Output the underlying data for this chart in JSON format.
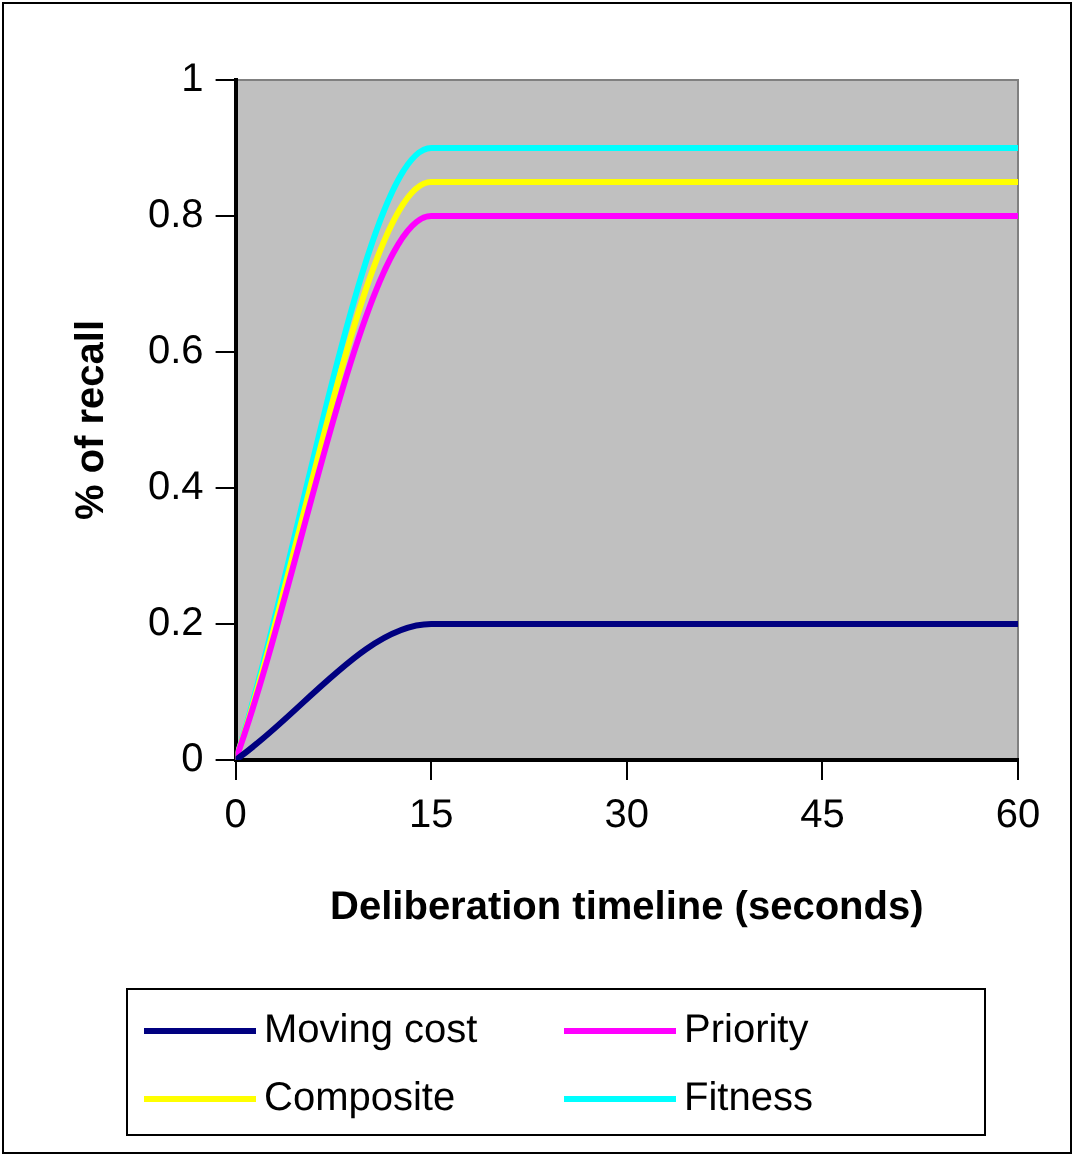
{
  "chart_data": {
    "type": "line",
    "xlabel": "Deliberation timeline (seconds)",
    "ylabel": "% of recall",
    "x": [
      0,
      15,
      30,
      45,
      60
    ],
    "xlim": [
      0,
      60
    ],
    "xticks": [
      0,
      15,
      30,
      45,
      60
    ],
    "ylim": [
      0,
      1
    ],
    "yticks": [
      0,
      0.2,
      0.4,
      0.6,
      0.8,
      1
    ],
    "grid": false,
    "legend": "bottom",
    "marker": "none",
    "line_style": "solid",
    "series": [
      {
        "name": "Moving cost",
        "color": "#000080",
        "values": [
          0,
          0.2,
          0.2,
          0.2,
          0.2
        ]
      },
      {
        "name": "Priority",
        "color": "#ff00ff",
        "values": [
          0,
          0.8,
          0.8,
          0.8,
          0.8
        ]
      },
      {
        "name": "Composite",
        "color": "#ffff00",
        "values": [
          0,
          0.85,
          0.85,
          0.85,
          0.85
        ]
      },
      {
        "name": "Fitness",
        "color": "#00ffff",
        "values": [
          0,
          0.9,
          0.9,
          0.9,
          0.9
        ]
      }
    ]
  }
}
